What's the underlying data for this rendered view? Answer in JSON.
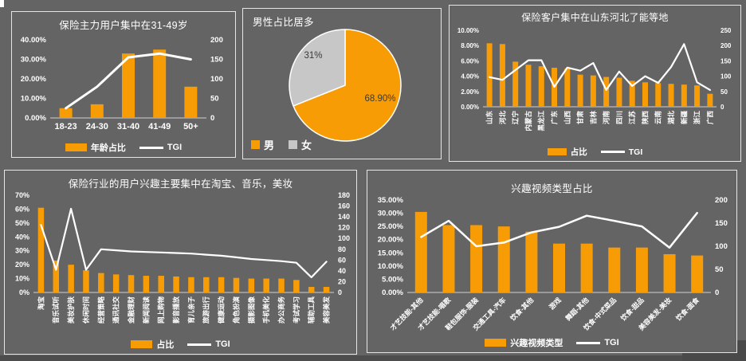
{
  "colors": {
    "orange": "#F89C05",
    "pie_gray": "#C7C7C7",
    "line_white": "#FFFFFF",
    "text_white": "#FFFFFF",
    "background": "#646464",
    "panel_border": "#E6E6E6",
    "axis_line": "#CFCFCF",
    "pie_label_dark": "#3A3A3A"
  },
  "chart_data": [
    {
      "id": "age",
      "type": "bar+line",
      "title": "保险主力用户集中在31-49岁",
      "categories": [
        "18-23",
        "24-30",
        "31-40",
        "41-49",
        "50+"
      ],
      "series": [
        {
          "name": "年龄占比",
          "type": "bar",
          "axis": "left",
          "values": [
            5,
            7,
            33,
            35,
            16
          ]
        },
        {
          "name": "TGI",
          "type": "line",
          "axis": "right",
          "values": [
            25,
            80,
            155,
            165,
            150
          ]
        }
      ],
      "left_axis": {
        "min": 0,
        "max": 40,
        "step": 10,
        "format": "p2"
      },
      "right_axis": {
        "min": 0,
        "max": 200,
        "step": 50,
        "format": "int"
      },
      "x_label_rotate": 0,
      "grid": false,
      "legend_position": "bottom-center"
    },
    {
      "id": "gender",
      "type": "pie",
      "title": "男性占比居多",
      "slices": [
        {
          "name": "男",
          "value": 68.9,
          "label": "68.90%",
          "color": "#F89C05"
        },
        {
          "name": "女",
          "value": 31.0,
          "label": "31%",
          "color": "#C7C7C7"
        }
      ],
      "legend_position": "bottom-left"
    },
    {
      "id": "province",
      "type": "bar+line",
      "title": "保险客户集中在山东河北了能等地",
      "categories": [
        "山东",
        "河北",
        "辽宁",
        "内蒙古",
        "黑龙江",
        "广东",
        "山西",
        "甘肃",
        "吉林",
        "河南",
        "四川",
        "江苏",
        "陕西",
        "云南",
        "湖北",
        "新疆",
        "浙江",
        "广西"
      ],
      "series": [
        {
          "name": "占比",
          "type": "bar",
          "axis": "left",
          "values": [
            8.3,
            8.2,
            5.9,
            5.5,
            5.3,
            5.1,
            5.0,
            4.2,
            4.1,
            3.9,
            3.8,
            3.4,
            3.2,
            3.1,
            3.0,
            2.9,
            2.8,
            1.7
          ]
        },
        {
          "name": "TGI",
          "type": "line",
          "axis": "right",
          "values": [
            97,
            88,
            120,
            152,
            152,
            65,
            128,
            118,
            143,
            55,
            115,
            68,
            100,
            78,
            130,
            205,
            80,
            55
          ]
        }
      ],
      "left_axis": {
        "min": 0,
        "max": 10,
        "step": 2,
        "format": "p2"
      },
      "right_axis": {
        "min": 0,
        "max": 250,
        "step": 50,
        "format": "int"
      },
      "x_label_rotate": 90,
      "grid": false,
      "legend_position": "bottom-center"
    },
    {
      "id": "interest",
      "type": "bar+line",
      "title": "保险行业的用户兴趣主要集中在淘宝、音乐，美妆",
      "categories": [
        "淘宝",
        "音乐试听",
        "美妆护肤",
        "休闲时间",
        "经营策略",
        "通讯社交",
        "金融理财",
        "新闻阅读",
        "网上购物",
        "影音播放",
        "育儿亲子",
        "旅游出行",
        "健康运动",
        "角色扮演",
        "摄影图像",
        "手机美化",
        "办公商务",
        "考试学习",
        "辅助工具",
        "美容美发"
      ],
      "series": [
        {
          "name": "占比",
          "type": "bar",
          "axis": "left",
          "values": [
            61,
            23,
            20,
            16,
            14,
            13,
            12.5,
            12,
            12,
            11.5,
            11,
            11,
            11,
            10.5,
            10,
            10,
            10,
            9,
            4,
            4
          ]
        },
        {
          "name": "TGI",
          "type": "line",
          "axis": "right",
          "values": [
            125,
            42,
            155,
            42,
            80,
            78,
            76,
            75,
            74,
            73,
            72,
            70,
            68,
            65,
            62,
            60,
            58,
            55,
            28,
            57
          ]
        }
      ],
      "left_axis": {
        "min": 0,
        "max": 70,
        "step": 10,
        "format": "p0"
      },
      "right_axis": {
        "min": 0,
        "max": 180,
        "step": 20,
        "format": "int"
      },
      "x_label_rotate": 90,
      "grid": false,
      "legend_position": "bottom-center"
    },
    {
      "id": "video",
      "type": "bar+line",
      "title": "兴趣视频类型占比",
      "categories": [
        "才艺技能-其他",
        "才艺技能-唱歌",
        "鞋包服饰-服装",
        "交通工具-汽车",
        "饮食-其他",
        "游戏",
        "舞蹈-其他",
        "饮食-中式菜品",
        "饮食-甜品",
        "美容美发-美妆",
        "饮食-面食"
      ],
      "series": [
        {
          "name": "兴趣视频类型",
          "type": "bar",
          "axis": "left",
          "values": [
            30.5,
            25.5,
            25.5,
            25,
            23,
            18.5,
            18.5,
            17,
            17,
            14.5,
            14
          ]
        },
        {
          "name": "TGI",
          "type": "line",
          "axis": "right",
          "values": [
            120,
            155,
            100,
            108,
            130,
            142,
            166,
            155,
            143,
            97,
            172
          ]
        }
      ],
      "left_axis": {
        "min": 0,
        "max": 35,
        "step": 5,
        "format": "p2"
      },
      "right_axis": {
        "min": 0,
        "max": 200,
        "step": 50,
        "format": "int"
      },
      "x_label_rotate": 45,
      "grid": false,
      "legend_position": "bottom-center"
    }
  ]
}
